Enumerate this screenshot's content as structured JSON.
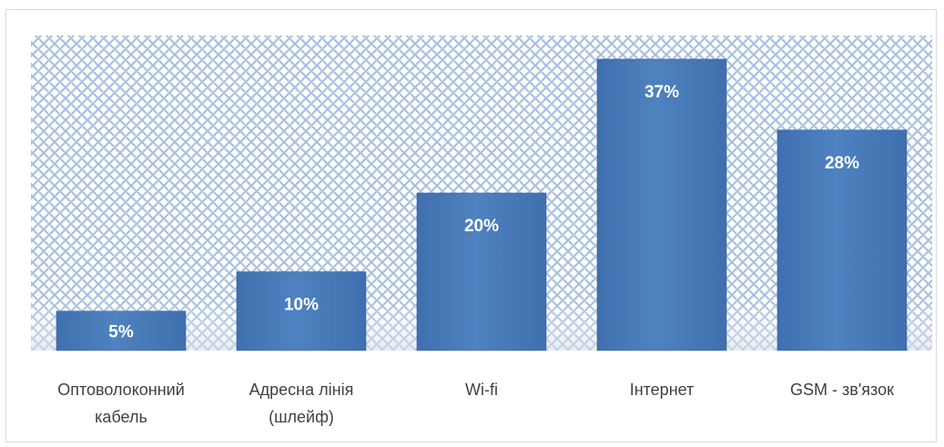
{
  "chart_data": {
    "type": "bar",
    "categories": [
      [
        "Оптоволоконний",
        "кабель"
      ],
      [
        "Адресна лінія",
        "(шлейф)"
      ],
      [
        "Wi-fi"
      ],
      [
        "Інтернет"
      ],
      [
        "GSM - зв'язок"
      ]
    ],
    "values": [
      5,
      10,
      20,
      37,
      28
    ],
    "value_labels": [
      "5%",
      "10%",
      "20%",
      "37%",
      "28%"
    ],
    "ylim": [
      0,
      40
    ],
    "grid": false,
    "legend": "none",
    "colors": {
      "bar": "#4a7ab8",
      "bar_light": "#5b8bc8",
      "bar_dark": "#3b6aa6",
      "pattern_line": "#a9c1e0",
      "pattern_bg": "#ffffff"
    }
  }
}
